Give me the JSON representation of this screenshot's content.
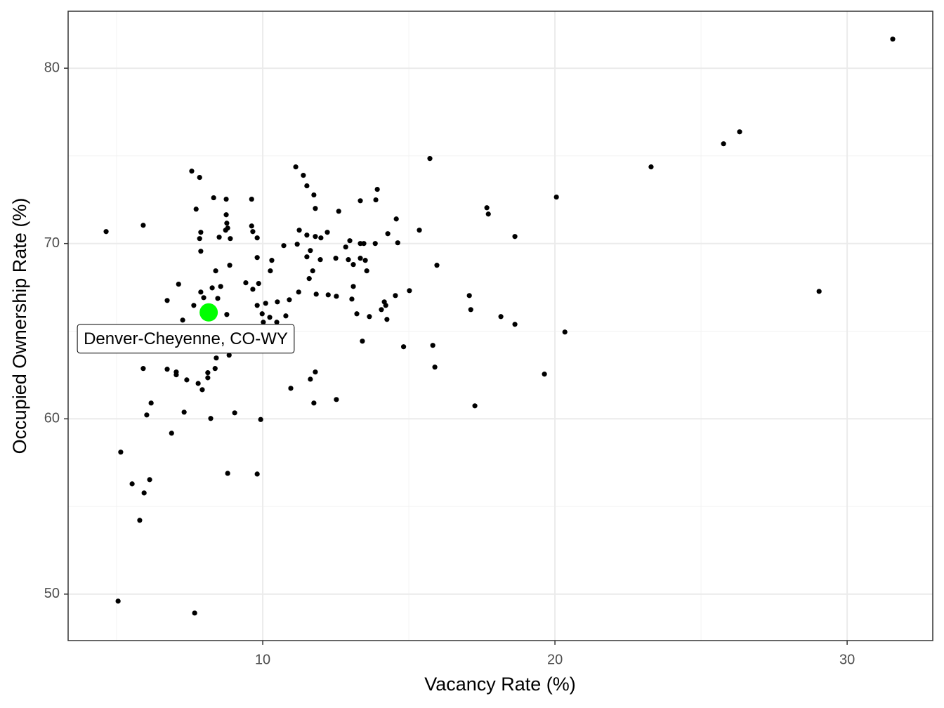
{
  "chart_data": {
    "type": "scatter",
    "xlabel": "Vacancy Rate (%)",
    "ylabel": "Occupied Ownership Rate (%)",
    "x": [
      31.56,
      26.32,
      25.77,
      23.29,
      29.04,
      15.72,
      20.05,
      17.67,
      17.72,
      18.63,
      20.34,
      19.64,
      18.15,
      18.63,
      17.07,
      17.12,
      17.26,
      15.36,
      15.96,
      15.02,
      14.82,
      15.82,
      15.89,
      14.57,
      14.62,
      13.92,
      13.87,
      13.85,
      14.28,
      13.34,
      13.34,
      13.46,
      13.34,
      13.51,
      13.56,
      13.1,
      12.98,
      12.84,
      12.93,
      13.1,
      13.05,
      13.22,
      13.65,
      13.41,
      14.54,
      14.16,
      14.21,
      14.06,
      14.25,
      12.6,
      12.5,
      12.52,
      12.52,
      12.21,
      12.24,
      11.13,
      11.39,
      11.51,
      11.75,
      11.8,
      11.51,
      11.8,
      11.99,
      11.25,
      11.18,
      11.63,
      11.51,
      11.97,
      11.71,
      11.59,
      11.23,
      10.91,
      10.79,
      10.48,
      10.5,
      10.72,
      10.31,
      10.26,
      10.1,
      10.24,
      9.98,
      10.02,
      11.83,
      11.8,
      11.63,
      11.75,
      10.96,
      9.93,
      9.81,
      9.81,
      9.62,
      9.62,
      9.66,
      9.81,
      9.86,
      9.42,
      9.66,
      9.81,
      8.89,
      8.75,
      8.75,
      8.77,
      8.8,
      8.73,
      8.87,
      8.56,
      8.32,
      8.51,
      7.84,
      7.57,
      7.72,
      7.88,
      7.84,
      7.88,
      8.39,
      8.27,
      7.88,
      7.98,
      7.64,
      8.46,
      8.77,
      7.26,
      7.12,
      6.73,
      5.91,
      4.64,
      5.91,
      6.73,
      7.04,
      7.04,
      7.4,
      7.79,
      7.93,
      8.12,
      8.12,
      8.37,
      8.41,
      8.85,
      6.18,
      6.03,
      7.31,
      8.22,
      9.04,
      6.88,
      5.14,
      6.13,
      5.53,
      5.94,
      8.8,
      5.79,
      5.05,
      7.67
    ],
    "y": [
      81.66,
      76.37,
      75.69,
      74.37,
      67.27,
      74.85,
      72.65,
      72.04,
      71.68,
      70.4,
      64.95,
      62.55,
      65.83,
      65.39,
      67.03,
      66.23,
      60.74,
      70.76,
      68.76,
      67.31,
      64.11,
      64.19,
      62.95,
      71.4,
      70.04,
      73.09,
      72.49,
      70.0,
      70.56,
      72.44,
      70.0,
      70.0,
      69.16,
      69.04,
      68.44,
      68.8,
      70.16,
      69.8,
      69.08,
      67.55,
      66.83,
      65.99,
      65.83,
      64.43,
      67.03,
      66.67,
      66.47,
      66.23,
      65.67,
      71.84,
      69.16,
      66.99,
      61.1,
      70.64,
      67.07,
      74.37,
      73.89,
      73.29,
      72.77,
      72.0,
      70.48,
      70.4,
      70.32,
      70.76,
      69.96,
      69.6,
      69.24,
      69.08,
      68.44,
      68.0,
      67.23,
      66.79,
      65.87,
      65.51,
      66.67,
      69.88,
      69.04,
      68.44,
      66.59,
      65.79,
      65.99,
      65.51,
      67.11,
      62.67,
      62.26,
      60.9,
      61.74,
      59.96,
      56.85,
      70.32,
      72.53,
      71.0,
      70.68,
      69.2,
      67.72,
      67.76,
      67.39,
      66.47,
      70.28,
      72.53,
      71.64,
      71.16,
      70.88,
      70.76,
      68.76,
      67.55,
      72.61,
      70.36,
      73.77,
      74.13,
      71.96,
      70.64,
      70.28,
      69.56,
      68.44,
      67.47,
      67.23,
      66.91,
      66.47,
      66.87,
      65.95,
      65.63,
      67.68,
      66.75,
      71.04,
      70.68,
      62.87,
      62.83,
      62.67,
      62.51,
      62.22,
      62.02,
      61.66,
      62.63,
      62.34,
      62.87,
      63.47,
      63.63,
      60.9,
      60.22,
      60.38,
      60.02,
      60.34,
      59.18,
      58.1,
      56.53,
      56.29,
      55.77,
      56.89,
      54.21,
      49.6,
      48.92
    ],
    "color": "#000000",
    "highlight": {
      "name": "Denver-Cheyenne, CO-WY",
      "x": 8.15,
      "y": 66.07,
      "color": "#00ff00"
    },
    "xlim": [
      3.34,
      32.93
    ],
    "ylim": [
      47.35,
      83.25
    ],
    "xticks": [
      10,
      20,
      30
    ],
    "yticks": [
      50,
      60,
      70,
      80
    ],
    "grid": true,
    "minor_grid": true
  }
}
